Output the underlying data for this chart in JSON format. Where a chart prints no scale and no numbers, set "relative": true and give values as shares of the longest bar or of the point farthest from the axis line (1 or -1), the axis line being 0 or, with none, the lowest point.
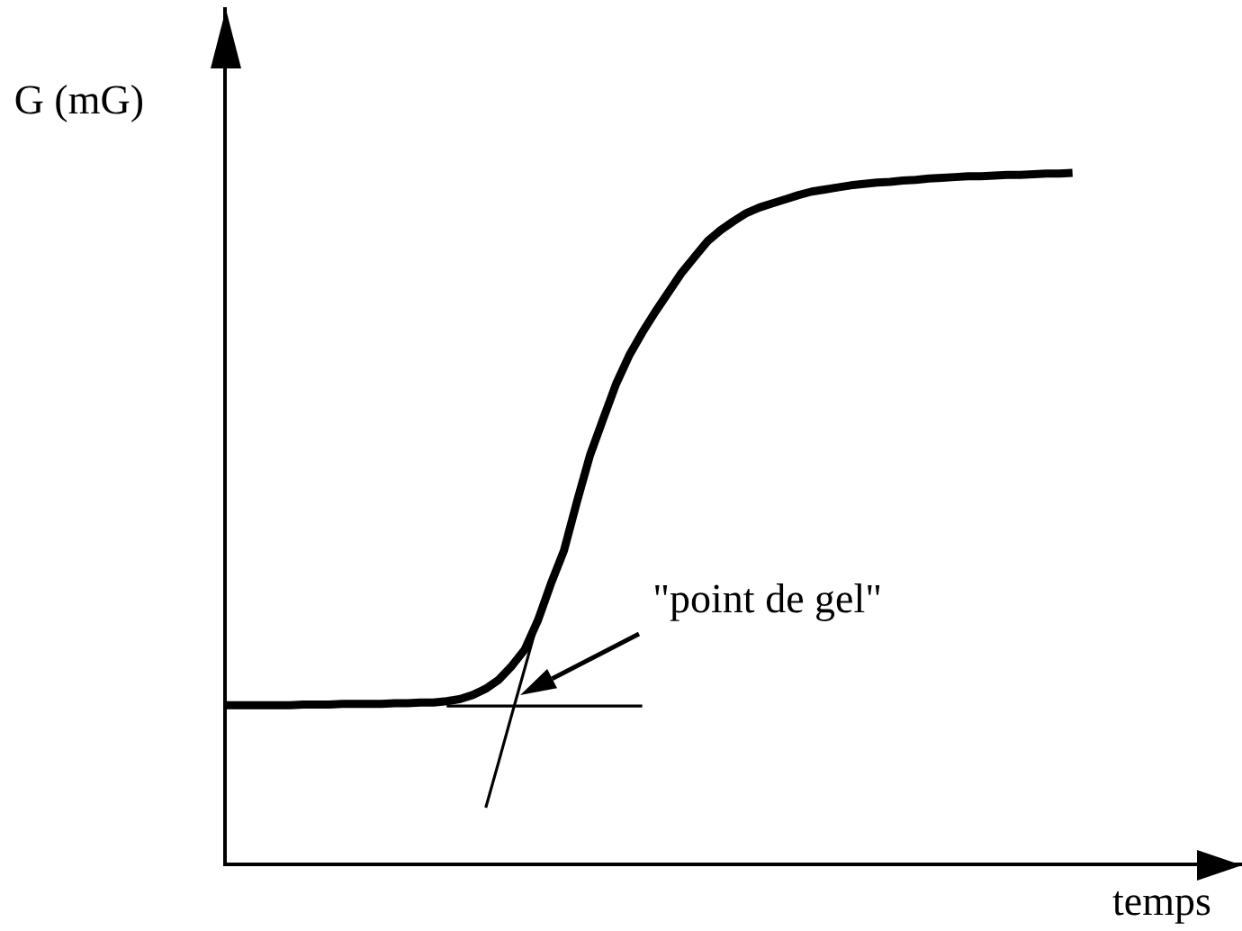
{
  "chart_data": {
    "type": "line",
    "xlabel": "temps",
    "ylabel": "G (mG)",
    "relative": true,
    "tick_labels": false,
    "categories": [
      null,
      null,
      null,
      null,
      null,
      null,
      null,
      null,
      null,
      null,
      null,
      null,
      null,
      null,
      null,
      null,
      null,
      null,
      null,
      null,
      null,
      null,
      null,
      null,
      null,
      null,
      null,
      null,
      null,
      null,
      null,
      null,
      null,
      null,
      null,
      null,
      null,
      null,
      null,
      null,
      null,
      null,
      null,
      null,
      null,
      null,
      null,
      null,
      null,
      null,
      null,
      null,
      null,
      null,
      null,
      null,
      null,
      null,
      null,
      null,
      null,
      null,
      null,
      null,
      null,
      null,
      null,
      null,
      null,
      null,
      null,
      null,
      null,
      null,
      null,
      null,
      null,
      null,
      null
    ],
    "series": [
      {
        "color": "#000000",
        "values": [
          0.23,
          0.23,
          0.23,
          0.23,
          0.23,
          0.23,
          0.231,
          0.231,
          0.231,
          0.232,
          0.232,
          0.232,
          0.232,
          0.233,
          0.233,
          0.234,
          0.234,
          0.236,
          0.239,
          0.245,
          0.254,
          0.267,
          0.287,
          0.311,
          0.353,
          0.406,
          0.454,
          0.525,
          0.592,
          0.644,
          0.695,
          0.736,
          0.769,
          0.799,
          0.827,
          0.855,
          0.878,
          0.901,
          0.917,
          0.93,
          0.942,
          0.95,
          0.956,
          0.962,
          0.968,
          0.973,
          0.976,
          0.979,
          0.982,
          0.984,
          0.986,
          0.987,
          0.989,
          0.99,
          0.992,
          0.993,
          0.994,
          0.995,
          0.995,
          0.996,
          0.997,
          0.997,
          0.998,
          0.999,
          0.999,
          1,
          null,
          null,
          null,
          null,
          null,
          null,
          null,
          null,
          null,
          null,
          null,
          null,
          null
        ]
      },
      {
        "color": "#000000",
        "values": [
          null,
          null,
          null,
          null,
          null,
          null,
          null,
          null,
          null,
          null,
          null,
          null,
          null,
          null,
          null,
          null,
          null,
          0.229,
          0.229,
          0.229,
          0.229,
          0.229,
          0.229,
          0.229,
          0.229,
          0.229,
          0.229,
          0.229,
          0.229,
          0.229,
          0.229,
          0.229,
          0.229,
          null,
          null,
          null,
          null,
          null,
          null,
          null,
          null,
          null,
          null,
          null,
          null,
          null,
          null,
          null,
          null,
          null,
          null,
          null,
          null,
          null,
          null,
          null,
          null,
          null,
          null,
          null,
          null,
          null,
          null,
          null,
          null,
          null,
          null,
          null,
          null,
          null,
          null,
          null,
          null,
          null,
          null,
          null,
          null,
          null,
          null
        ]
      },
      {
        "color": "#000000",
        "values": [
          null,
          null,
          null,
          null,
          null,
          null,
          null,
          null,
          null,
          null,
          null,
          null,
          null,
          null,
          null,
          null,
          null,
          null,
          null,
          null,
          0.082,
          0.149,
          0.217,
          0.284,
          0.352,
          null,
          null,
          null,
          null,
          null,
          null,
          null,
          null,
          null,
          null,
          null,
          null,
          null,
          null,
          null,
          null,
          null,
          null,
          null,
          null,
          null,
          null,
          null,
          null,
          null,
          null,
          null,
          null,
          null,
          null,
          null,
          null,
          null,
          null,
          null,
          null,
          null,
          null,
          null,
          null,
          null,
          null,
          null,
          null,
          null,
          null,
          null,
          null,
          null,
          null,
          null,
          null,
          null,
          null
        ]
      }
    ],
    "annotations": [
      "\"point de gel\""
    ]
  }
}
